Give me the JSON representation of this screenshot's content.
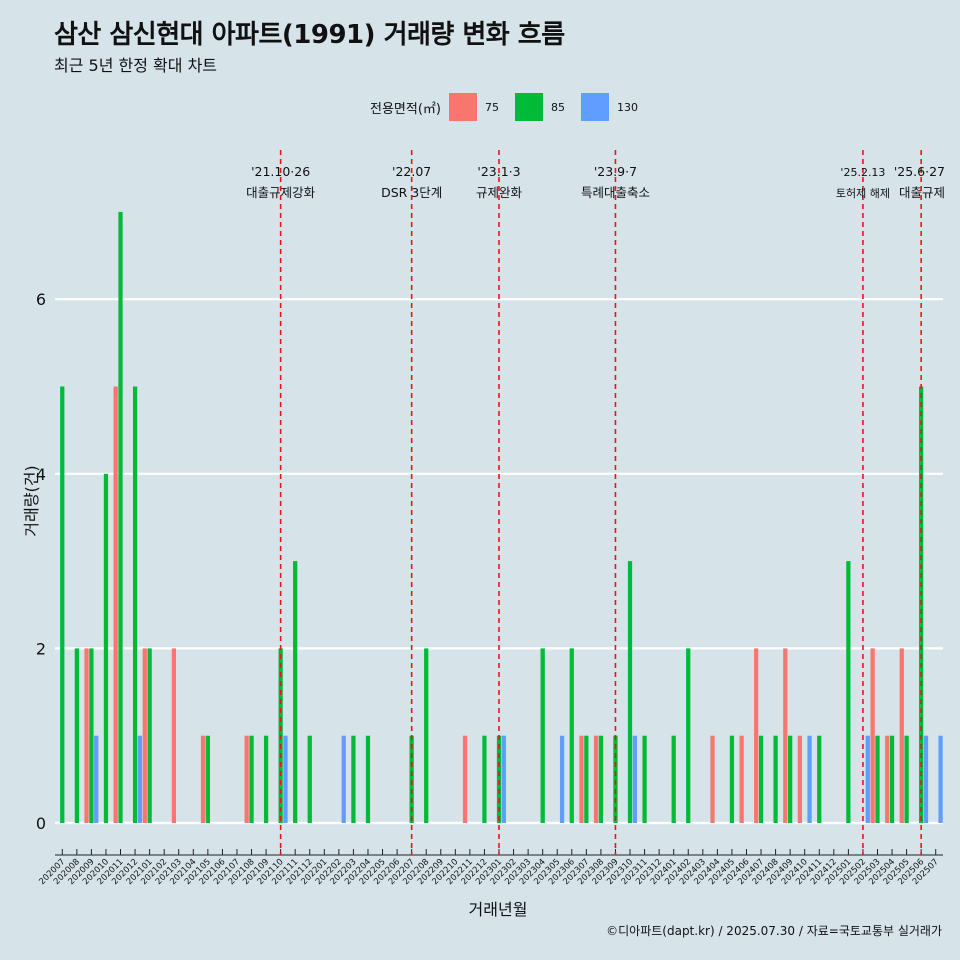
{
  "title": "삼산 삼신현대 아파트(1991) 거래량 변화 흐름",
  "subtitle": "최근 5년 한정 확대 차트",
  "caption": "©디아파트(dapt.kr) / 2025.07.30 / 자료=국토교통부 실거래가",
  "colors": {
    "background": "#d6e4ea",
    "s75": "#f8766d",
    "s85": "#00ba38",
    "s130": "#619cff",
    "grid": "#ffffff",
    "event_line": "#e8141c"
  },
  "chart_data": {
    "type": "bar",
    "xlabel": "거래년월",
    "ylabel": "거래량(건)",
    "ylim": [
      0,
      7
    ],
    "y_ticks": [
      0,
      2,
      4,
      6
    ],
    "legend_title": "전용면적(㎡)",
    "legend_position": "top",
    "grid": true,
    "categories": [
      "202007",
      "202008",
      "202009",
      "202010",
      "202011",
      "202012",
      "202101",
      "202102",
      "202103",
      "202104",
      "202105",
      "202106",
      "202107",
      "202108",
      "202109",
      "202110",
      "202111",
      "202112",
      "202201",
      "202202",
      "202203",
      "202204",
      "202205",
      "202206",
      "202207",
      "202208",
      "202209",
      "202210",
      "202211",
      "202212",
      "202301",
      "202302",
      "202303",
      "202304",
      "202305",
      "202306",
      "202307",
      "202308",
      "202309",
      "202310",
      "202311",
      "202312",
      "202401",
      "202402",
      "202403",
      "202404",
      "202405",
      "202406",
      "202407",
      "202408",
      "202409",
      "202410",
      "202411",
      "202412",
      "202501",
      "202502",
      "202503",
      "202504",
      "202505",
      "202506",
      "202507"
    ],
    "series": [
      {
        "name": "75",
        "color": "#f8766d",
        "values": [
          0,
          0,
          2,
          0,
          5,
          0,
          2,
          0,
          2,
          0,
          1,
          0,
          0,
          1,
          0,
          0,
          0,
          0,
          0,
          0,
          0,
          0,
          0,
          0,
          0,
          0,
          0,
          0,
          1,
          0,
          0,
          0,
          0,
          0,
          0,
          0,
          1,
          1,
          0,
          0,
          0,
          0,
          0,
          0,
          0,
          1,
          0,
          1,
          2,
          0,
          2,
          1,
          0,
          0,
          0,
          0,
          2,
          1,
          2,
          0,
          0
        ]
      },
      {
        "name": "85",
        "color": "#00ba38",
        "values": [
          5,
          2,
          2,
          4,
          7,
          5,
          2,
          0,
          0,
          0,
          1,
          0,
          0,
          1,
          1,
          2,
          3,
          1,
          0,
          0,
          1,
          1,
          0,
          0,
          1,
          2,
          0,
          0,
          0,
          1,
          1,
          0,
          0,
          2,
          0,
          2,
          1,
          1,
          1,
          3,
          1,
          0,
          1,
          2,
          0,
          0,
          1,
          0,
          1,
          1,
          1,
          0,
          1,
          0,
          3,
          0,
          1,
          1,
          1,
          5,
          0
        ]
      },
      {
        "name": "130",
        "color": "#619cff",
        "values": [
          0,
          0,
          1,
          0,
          0,
          1,
          0,
          0,
          0,
          0,
          0,
          0,
          0,
          0,
          0,
          1,
          0,
          0,
          0,
          1,
          0,
          0,
          0,
          0,
          0,
          0,
          0,
          0,
          0,
          0,
          1,
          0,
          0,
          0,
          1,
          0,
          0,
          0,
          0,
          1,
          0,
          0,
          0,
          0,
          0,
          0,
          0,
          0,
          0,
          0,
          0,
          1,
          0,
          0,
          0,
          1,
          0,
          0,
          0,
          1,
          1
        ]
      }
    ],
    "events": [
      {
        "month": "202110",
        "date": "'21.10·26",
        "label": "대출규제강화"
      },
      {
        "month": "202207",
        "date": "'22.07",
        "label": "DSR 3단계"
      },
      {
        "month": "202301",
        "date": "'23.1·3",
        "label": "규제완화"
      },
      {
        "month": "202309",
        "date": "'23.9·7",
        "label": "특례대출축소"
      },
      {
        "month": "202502",
        "date": "'25.2.13",
        "label": "토허제 해제"
      },
      {
        "month": "202506",
        "date": "'25.6·27",
        "label": "대출규제"
      }
    ]
  }
}
